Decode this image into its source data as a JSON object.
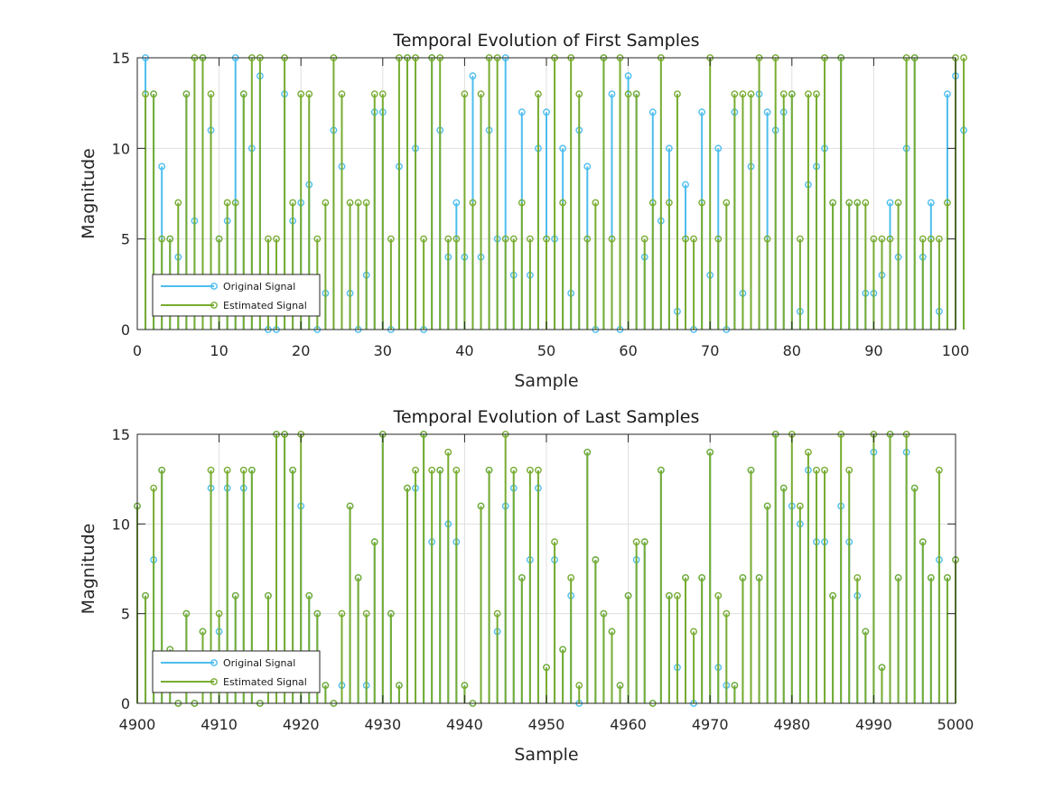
{
  "colors": {
    "original": "#4DBEEE",
    "estimated": "#77AC30"
  },
  "chart_data": [
    {
      "type": "stem",
      "title": "Temporal Evolution of First Samples",
      "xlabel": "Sample",
      "ylabel": "Magnitude",
      "xlim": [
        0,
        100
      ],
      "ylim": [
        0,
        15
      ],
      "xticks": [
        "0",
        "10",
        "20",
        "30",
        "40",
        "50",
        "60",
        "70",
        "80",
        "90",
        "100"
      ],
      "yticks": [
        "0",
        "5",
        "10",
        "15"
      ],
      "grid": true,
      "legend_position": "lower-left",
      "x_start": 1,
      "series": [
        {
          "name": "Original Signal",
          "values": [
            15,
            13,
            9,
            5,
            4,
            13,
            6,
            15,
            11,
            5,
            6,
            15,
            13,
            10,
            14,
            0,
            0,
            13,
            6,
            7,
            8,
            0,
            2,
            11,
            9,
            2,
            0,
            3,
            12,
            12,
            0,
            9,
            15,
            10,
            0,
            15,
            11,
            4,
            7,
            4,
            14,
            4,
            11,
            5,
            15,
            3,
            12,
            3,
            10,
            12,
            5,
            10,
            2,
            11,
            9,
            0,
            15,
            13,
            0,
            14,
            13,
            4,
            12,
            6,
            10,
            1,
            8,
            0,
            12,
            3,
            10,
            0,
            12,
            2,
            9,
            13,
            12,
            11,
            12,
            13,
            1,
            8,
            9,
            10,
            7,
            15,
            7,
            7,
            2,
            2,
            3,
            7,
            4,
            10,
            15,
            4,
            7,
            1,
            13,
            14,
            11
          ]
        },
        {
          "name": "Estimated Signal",
          "values": [
            13,
            13,
            5,
            5,
            7,
            13,
            15,
            15,
            13,
            5,
            7,
            7,
            13,
            15,
            15,
            5,
            5,
            15,
            7,
            13,
            13,
            5,
            7,
            15,
            13,
            7,
            7,
            7,
            13,
            13,
            5,
            15,
            15,
            15,
            5,
            15,
            15,
            5,
            5,
            13,
            7,
            13,
            15,
            15,
            5,
            5,
            7,
            5,
            13,
            5,
            15,
            7,
            15,
            13,
            5,
            7,
            15,
            5,
            15,
            13,
            13,
            5,
            7,
            15,
            7,
            13,
            5,
            5,
            7,
            15,
            5,
            7,
            13,
            13,
            13,
            15,
            5,
            15,
            13,
            13,
            5,
            13,
            13,
            15,
            7,
            15,
            7,
            7,
            7,
            5,
            5,
            5,
            7,
            15,
            15,
            5,
            5,
            5,
            7,
            15,
            15
          ]
        }
      ]
    },
    {
      "type": "stem",
      "title": "Temporal Evolution of Last Samples",
      "xlabel": "Sample",
      "ylabel": "Magnitude",
      "xlim": [
        4900,
        5000
      ],
      "ylim": [
        0,
        15
      ],
      "xticks": [
        "4900",
        "4910",
        "4920",
        "4930",
        "4940",
        "4950",
        "4960",
        "4970",
        "4980",
        "4990",
        "5000"
      ],
      "yticks": [
        "0",
        "5",
        "10",
        "15"
      ],
      "grid": true,
      "legend_position": "lower-left",
      "x_start": 4900,
      "series": [
        {
          "name": "Original Signal",
          "values": [
            11,
            6,
            8,
            13,
            3,
            0,
            5,
            0,
            4,
            12,
            4,
            12,
            6,
            12,
            13,
            0,
            6,
            15,
            15,
            13,
            11,
            6,
            5,
            1,
            0,
            1,
            11,
            7,
            1,
            9,
            15,
            5,
            1,
            12,
            12,
            15,
            9,
            13,
            10,
            9,
            1,
            0,
            11,
            13,
            4,
            11,
            12,
            7,
            8,
            12,
            2,
            8,
            3,
            6,
            0,
            14,
            8,
            5,
            4,
            1,
            6,
            8,
            9,
            0,
            13,
            6,
            2,
            7,
            0,
            7,
            14,
            2,
            1,
            1,
            7,
            13,
            7,
            11,
            15,
            12,
            11,
            10,
            13,
            9,
            9,
            6,
            11,
            9,
            6,
            4,
            14,
            2,
            15,
            7,
            14,
            12,
            9,
            7,
            8,
            7,
            8
          ]
        },
        {
          "name": "Estimated Signal",
          "values": [
            11,
            6,
            12,
            13,
            3,
            0,
            5,
            0,
            4,
            13,
            5,
            13,
            6,
            13,
            13,
            0,
            6,
            15,
            15,
            13,
            15,
            6,
            5,
            1,
            0,
            5,
            11,
            7,
            5,
            9,
            15,
            5,
            1,
            12,
            13,
            15,
            13,
            13,
            14,
            13,
            1,
            0,
            11,
            13,
            5,
            15,
            13,
            7,
            13,
            13,
            2,
            9,
            3,
            7,
            1,
            14,
            8,
            5,
            4,
            1,
            6,
            9,
            9,
            0,
            13,
            6,
            6,
            7,
            4,
            7,
            14,
            6,
            5,
            1,
            7,
            13,
            7,
            11,
            15,
            12,
            15,
            11,
            14,
            13,
            13,
            6,
            15,
            13,
            7,
            4,
            15,
            2,
            15,
            7,
            15,
            12,
            9,
            7,
            13,
            7,
            8
          ]
        }
      ]
    }
  ]
}
